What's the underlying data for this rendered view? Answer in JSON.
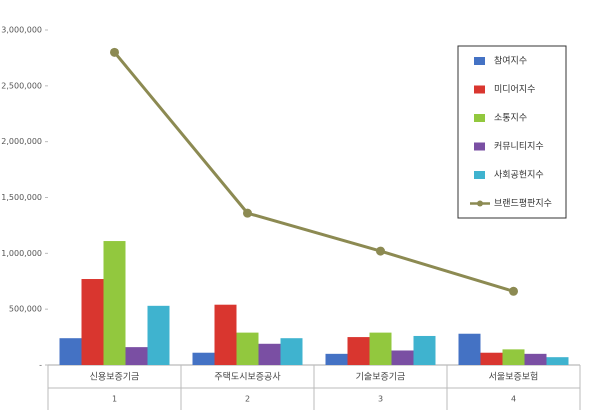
{
  "chart_data": {
    "type": "bar",
    "categories": [
      "신용보증기금",
      "주택도시보증공사",
      "기술보증기금",
      "서울보증보험"
    ],
    "category_numbers": [
      "1",
      "2",
      "3",
      "4"
    ],
    "series": [
      {
        "name": "참여지수",
        "color": "#4472c4",
        "values": [
          240000,
          110000,
          100000,
          280000
        ]
      },
      {
        "name": "미디어지수",
        "color": "#d9362f",
        "values": [
          770000,
          540000,
          250000,
          110000
        ]
      },
      {
        "name": "소통지수",
        "color": "#92c83e",
        "values": [
          1110000,
          290000,
          290000,
          140000
        ]
      },
      {
        "name": "커뮤니티지수",
        "color": "#7a4fa3",
        "values": [
          160000,
          190000,
          130000,
          100000
        ]
      },
      {
        "name": "사회공헌지수",
        "color": "#3fb3cf",
        "values": [
          530000,
          240000,
          260000,
          70000
        ]
      },
      {
        "name": "브랜드평판지수",
        "color": "#8c8a52",
        "type": "line",
        "values": [
          2800000,
          1360000,
          1020000,
          660000
        ]
      }
    ],
    "ylim": [
      0,
      3000000
    ],
    "yticks": [
      {
        "value": 0,
        "label": "-"
      },
      {
        "value": 500000,
        "label": "500,000"
      },
      {
        "value": 1000000,
        "label": "1,000,000"
      },
      {
        "value": 1500000,
        "label": "1,500,000"
      },
      {
        "value": 2000000,
        "label": "2,000,000"
      },
      {
        "value": 2500000,
        "label": "2,500,000"
      },
      {
        "value": 3000000,
        "label": "3,000,000"
      }
    ],
    "grid": false,
    "legend": "upper right"
  }
}
